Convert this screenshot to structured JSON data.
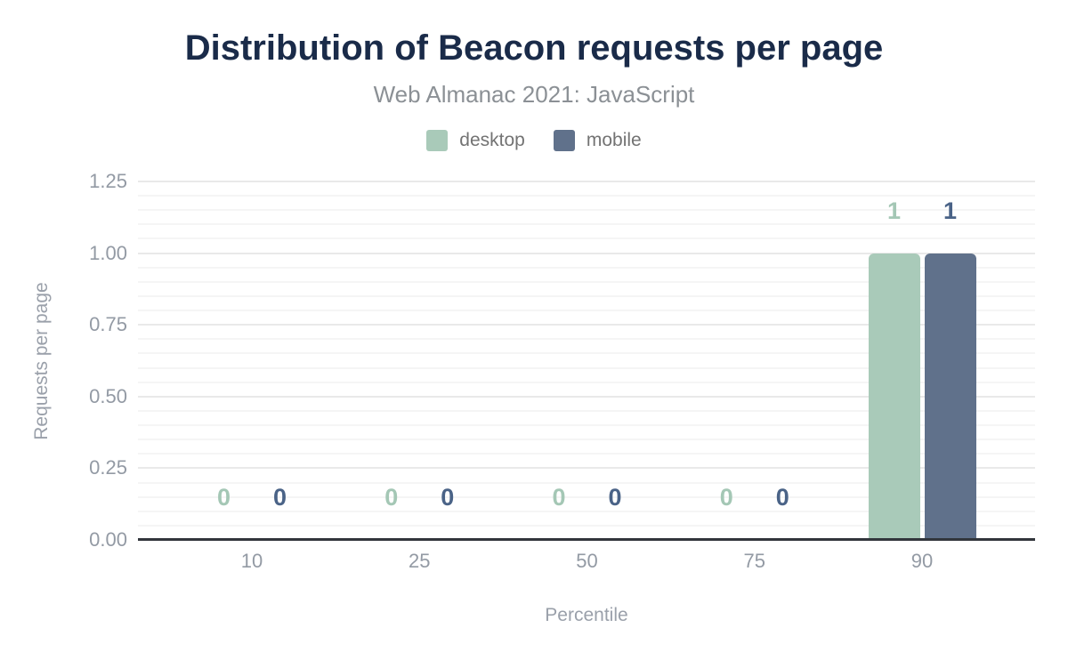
{
  "header": {
    "title": "Distribution of Beacon requests per page",
    "subtitle": "Web Almanac 2021: JavaScript"
  },
  "legend": {
    "items": [
      {
        "label": "desktop",
        "color": "#a9cab9"
      },
      {
        "label": "mobile",
        "color": "#60718b"
      }
    ]
  },
  "chart_data": {
    "type": "bar",
    "title": "Distribution of Beacon requests per page",
    "subtitle": "Web Almanac 2021: JavaScript",
    "categories": [
      "10",
      "25",
      "50",
      "75",
      "90"
    ],
    "series": [
      {
        "name": "desktop",
        "color": "#a9cab9",
        "label_color": "#a4c7b5",
        "values": [
          0,
          0,
          0,
          0,
          1
        ]
      },
      {
        "name": "mobile",
        "color": "#60718b",
        "label_color": "#4a6387",
        "values": [
          0,
          0,
          0,
          0,
          1
        ]
      }
    ],
    "xlabel": "Percentile",
    "ylabel": "Requests per page",
    "ylim": [
      0,
      1.25
    ],
    "ytick_step": 0.25,
    "yminor_step": 0.05,
    "ytick_format_decimals": 2,
    "legend_position": "top",
    "grid": "on"
  },
  "colors": {
    "title": "#1a2b49",
    "subtitle": "#8b9095",
    "legend_text": "#737373",
    "tick_label": "#939aa4",
    "axis_title": "#9aa0aa",
    "axis_line": "#32363c",
    "grid_major": "#e9e9e9",
    "grid_minor": "#f5f5f5"
  }
}
